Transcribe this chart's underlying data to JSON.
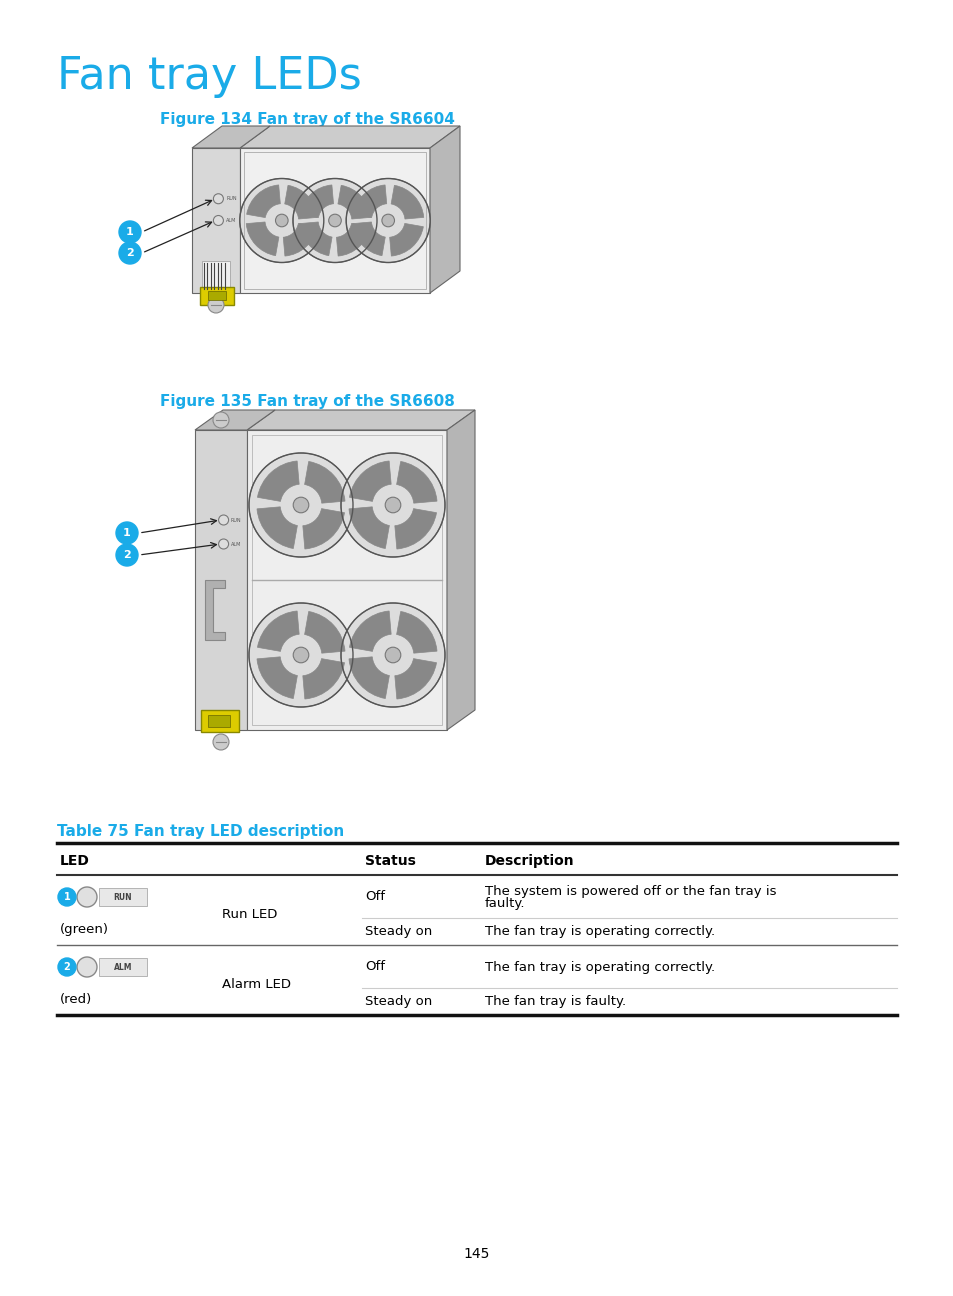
{
  "title": "Fan tray LEDs",
  "title_color": "#1AABE8",
  "title_fontsize": 32,
  "fig1_caption": "Figure 134 Fan tray of the SR6604",
  "fig2_caption": "Figure 135 Fan tray of the SR6608",
  "caption_color": "#1AABE8",
  "caption_fontsize": 11,
  "table_title": "Table 75 Fan tray LED description",
  "table_title_color": "#1AABE8",
  "table_title_fontsize": 11,
  "page_number": "145",
  "background_color": "#ffffff",
  "text_color": "#000000",
  "body_fontsize": 9.5,
  "header_fontsize": 10,
  "cyan_color": "#1AABE8",
  "light_gray": "#e8e8e8",
  "mid_gray": "#c8c8c8",
  "dark_gray": "#999999",
  "edge_color": "#666666"
}
